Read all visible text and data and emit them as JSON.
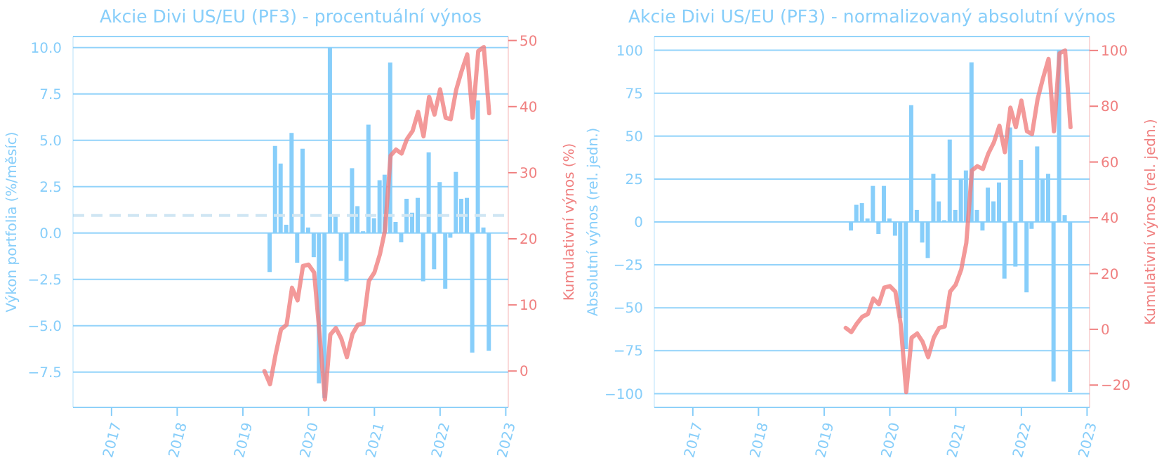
{
  "chart_data": [
    {
      "type": "bar",
      "title": "Akcie Divi US/EU (PF3) - procentuální výnos",
      "ylabel": "Výkon portfolia (%/měsíc)",
      "y2label": "Kumulativní výnos (%)",
      "x": [
        "2019-05",
        "2019-06",
        "2019-07",
        "2019-08",
        "2019-09",
        "2019-10",
        "2019-11",
        "2019-12",
        "2020-01",
        "2020-02",
        "2020-03",
        "2020-04",
        "2020-05",
        "2020-06",
        "2020-07",
        "2020-08",
        "2020-09",
        "2020-10",
        "2020-11",
        "2020-12",
        "2021-01",
        "2021-02",
        "2021-03",
        "2021-04",
        "2021-05",
        "2021-06",
        "2021-07",
        "2021-08",
        "2021-09",
        "2021-10",
        "2021-11",
        "2021-12",
        "2022-01",
        "2022-02",
        "2022-03",
        "2022-04",
        "2022-05",
        "2022-06",
        "2022-07",
        "2022-08",
        "2022-09",
        "2022-10"
      ],
      "series": [
        {
          "color": "#87cefa",
          "values": [
            null,
            -2.1,
            4.7,
            3.75,
            0.45,
            5.4,
            -1.6,
            4.55,
            0.3,
            -1.3,
            -8.1,
            -8.9,
            10.0,
            0.9,
            -1.5,
            -2.6,
            3.5,
            1.45,
            0.1,
            5.85,
            0.8,
            2.85,
            3.15,
            9.2,
            0.6,
            -0.5,
            1.85,
            1.1,
            1.9,
            -2.6,
            4.35,
            -1.95,
            2.75,
            -3.0,
            -0.25,
            3.3,
            1.85,
            1.9,
            -6.45,
            7.15,
            0.3,
            -6.35
          ]
        },
        {
          "type": "line",
          "color": "#f08080",
          "axis": "y2",
          "values": [
            0,
            -2,
            2.4,
            6.3,
            7.0,
            12.6,
            10.7,
            15.9,
            16.1,
            14.9,
            6,
            -4.3,
            5.5,
            6.5,
            4.9,
            2.1,
            5.6,
            7.0,
            7.2,
            13.6,
            14.9,
            17.7,
            21.3,
            32.6,
            33.5,
            32.9,
            35.1,
            36.3,
            39.2,
            35.5,
            41.5,
            38.8,
            42.6,
            38.3,
            38.1,
            42.6,
            45.4,
            47.9,
            38.3,
            48.4,
            49.0,
            39.0
          ]
        }
      ],
      "xlim": [
        "2016-06-01",
        "2023-01-15"
      ],
      "xticks": [
        "2017",
        "2018",
        "2019",
        "2020",
        "2021",
        "2022",
        "2023"
      ],
      "ylim": [
        -9.4,
        10.6
      ],
      "yticks": [
        {
          "value": -7.5,
          "label": "−7.5"
        },
        {
          "value": -5,
          "label": "−5.0"
        },
        {
          "value": -2.5,
          "label": "−2.5"
        },
        {
          "value": 0,
          "label": "0.0"
        },
        {
          "value": 2.5,
          "label": "2.5"
        },
        {
          "value": 5,
          "label": "5.0"
        },
        {
          "value": 7.5,
          "label": "7.5"
        },
        {
          "value": 10,
          "label": "10.0"
        }
      ],
      "y2lim": [
        -5.5,
        50.6
      ],
      "y2ticks": [
        0,
        10,
        20,
        30,
        40,
        50
      ],
      "ref_lines": [
        {
          "axis": "y",
          "value": 0.95,
          "color": "#cfe6f3",
          "line_style": "dashed"
        }
      ],
      "grid": "y"
    },
    {
      "type": "bar",
      "title": "Akcie Divi US/EU (PF3) - normalizovaný absolutní výnos",
      "ylabel": "Absolutní výnos (rel. jedn.)",
      "y2label": "Kumulativní výnos (rel. jedn.)",
      "x": [
        "2019-05",
        "2019-06",
        "2019-07",
        "2019-08",
        "2019-09",
        "2019-10",
        "2019-11",
        "2019-12",
        "2020-01",
        "2020-02",
        "2020-03",
        "2020-04",
        "2020-05",
        "2020-06",
        "2020-07",
        "2020-08",
        "2020-09",
        "2020-10",
        "2020-11",
        "2020-12",
        "2021-01",
        "2021-02",
        "2021-03",
        "2021-04",
        "2021-05",
        "2021-06",
        "2021-07",
        "2021-08",
        "2021-09",
        "2021-10",
        "2021-11",
        "2021-12",
        "2022-01",
        "2022-02",
        "2022-03",
        "2022-04",
        "2022-05",
        "2022-06",
        "2022-07",
        "2022-08",
        "2022-09",
        "2022-10"
      ],
      "series": [
        {
          "color": "#87cefa",
          "values": [
            null,
            -5,
            10,
            11,
            2,
            21,
            -7,
            21,
            2,
            -8,
            -56,
            -74,
            68,
            7,
            -12,
            -21,
            28,
            12,
            1,
            48,
            7,
            25,
            30,
            93,
            7,
            -5,
            20,
            12,
            23,
            -33,
            55,
            -26,
            36,
            -41,
            -4,
            44,
            25,
            28,
            -93,
            100,
            4,
            -99
          ]
        },
        {
          "type": "line",
          "color": "#f08080",
          "axis": "y2",
          "values": [
            0.5,
            -1,
            2,
            4.5,
            5.5,
            11,
            9,
            15,
            15.5,
            13.5,
            2,
            -22.5,
            -3,
            -1.5,
            -4.5,
            -10,
            -3,
            0.5,
            1,
            13.5,
            16,
            21.5,
            31,
            57,
            58.5,
            57.5,
            63,
            67,
            73,
            63.5,
            79.5,
            72.5,
            82,
            71,
            70,
            82.5,
            90,
            97,
            71,
            99,
            100,
            72.5
          ]
        }
      ],
      "xlim": [
        "2016-06-01",
        "2023-01-15"
      ],
      "xticks": [
        "2017",
        "2018",
        "2019",
        "2020",
        "2021",
        "2022",
        "2023"
      ],
      "ylim": [
        -108,
        108
      ],
      "yticks": [
        {
          "value": -100,
          "label": "−100"
        },
        {
          "value": -75,
          "label": "−75"
        },
        {
          "value": -50,
          "label": "−50"
        },
        {
          "value": -25,
          "label": "−25"
        },
        0,
        25,
        50,
        75,
        100
      ],
      "y2lim": [
        -28,
        105
      ],
      "y2ticks": [
        {
          "value": -20,
          "label": "−20"
        },
        0,
        20,
        40,
        60,
        80,
        100
      ],
      "grid": "y"
    }
  ]
}
